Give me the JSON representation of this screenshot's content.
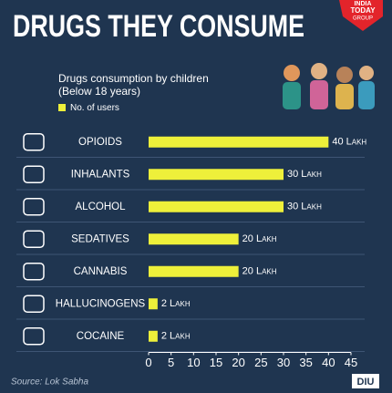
{
  "chart_data": {
    "type": "bar",
    "orientation": "horizontal",
    "title": "DRUGS THEY CONSUME",
    "subtitle": [
      "Drugs consumption by children",
      "(Below 18 years)"
    ],
    "categories": [
      "OPIOIDS",
      "INHALANTS",
      "ALCOHOL",
      "SEDATIVES",
      "CANNABIS",
      "HALLUCINOGENS",
      "COCAINE"
    ],
    "series": [
      {
        "name": "No. of users",
        "color": "#eef03a",
        "values": [
          40,
          30,
          30,
          20,
          20,
          2,
          2
        ],
        "value_labels": [
          "40 Lakh",
          "30 Lakh",
          "30 Lakh",
          "20 Lakh",
          "20 Lakh",
          "2 Lakh",
          "2 Lakh"
        ]
      }
    ],
    "xlim": [
      0,
      45
    ],
    "xticks": [
      0,
      5,
      10,
      15,
      20,
      25,
      30,
      35,
      40,
      45
    ],
    "source": "Source: Lok Sabha",
    "logo": [
      "INDIA",
      "TODAY",
      "GROUP"
    ],
    "badge": "DIU"
  }
}
